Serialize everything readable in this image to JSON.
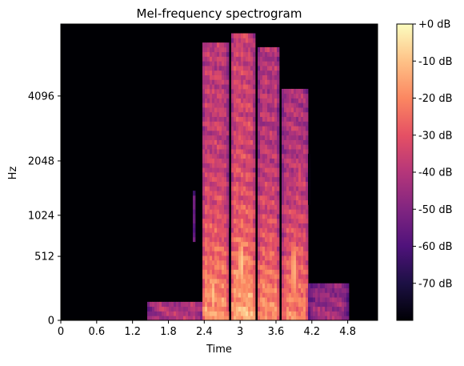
{
  "chart_data": {
    "type": "heatmap",
    "title": "Mel-frequency spectrogram",
    "xlabel": "Time",
    "ylabel": "Hz",
    "x_ticks": [
      "0",
      "0.6",
      "1.2",
      "1.8",
      "2.4",
      "3",
      "3.6",
      "4.2",
      "4.8"
    ],
    "x_tick_values": [
      0,
      0.6,
      1.2,
      1.8,
      2.4,
      3.0,
      3.6,
      4.2,
      4.8
    ],
    "xlim": [
      0,
      5.3
    ],
    "y_ticks": [
      "0",
      "512",
      "1024",
      "2048",
      "4096"
    ],
    "y_tick_values": [
      0,
      512,
      1024,
      2048,
      4096
    ],
    "ylim": [
      0,
      8192
    ],
    "y_scale": "mel",
    "colormap": "magma",
    "colorbar": {
      "labels": [
        "+0 dB",
        "-10 dB",
        "-20 dB",
        "-30 dB",
        "-40 dB",
        "-50 dB",
        "-60 dB",
        "-70 dB"
      ],
      "values": [
        0,
        -10,
        -20,
        -30,
        -40,
        -50,
        -60,
        -70
      ],
      "range": [
        -80,
        0
      ]
    },
    "colormap_stops": [
      "#000004",
      "#1c1044",
      "#4f127b",
      "#812581",
      "#b5367a",
      "#e55064",
      "#fb8761",
      "#fec287",
      "#fcfdbf"
    ],
    "events": [
      {
        "t_start": 1.45,
        "t_end": 2.4,
        "f_max_hz": 110,
        "level_db": -62
      },
      {
        "t_start": 2.2,
        "t_end": 2.25,
        "f_min_hz": 700,
        "f_max_hz": 1400,
        "level_db": -55
      },
      {
        "t_start": 2.35,
        "t_end": 2.8,
        "f_max_hz": 7000,
        "level_db": -38
      },
      {
        "t_start": 2.85,
        "t_end": 3.25,
        "f_max_hz": 7500,
        "level_db": -35
      },
      {
        "t_start": 3.3,
        "t_end": 3.65,
        "f_max_hz": 6500,
        "level_db": -40
      },
      {
        "t_start": 3.7,
        "t_end": 4.15,
        "f_max_hz": 4500,
        "level_db": -42
      },
      {
        "t_start": 4.15,
        "t_end": 4.8,
        "f_max_hz": 250,
        "level_db": -65
      }
    ]
  }
}
